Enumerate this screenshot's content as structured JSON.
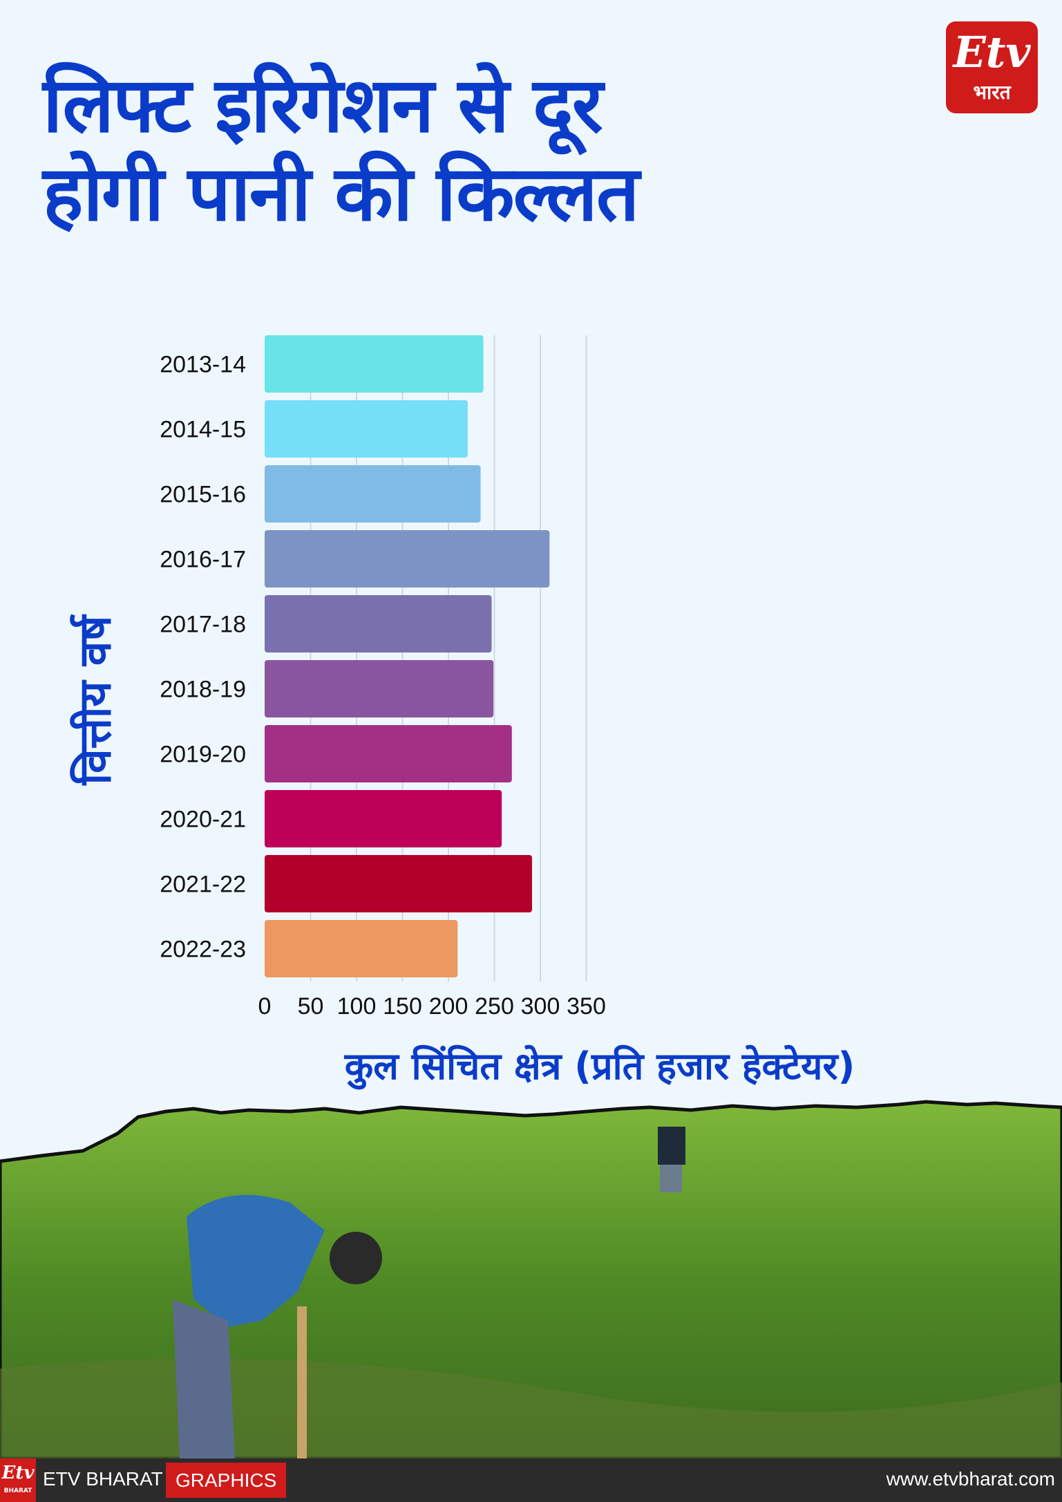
{
  "header": {
    "title_line1": "लिफ्ट इरिगेशन से दूर",
    "title_line2": "होगी पानी की किल्लत",
    "logo_mark": "Etv",
    "logo_sub": "भारत"
  },
  "chart_data": {
    "type": "bar",
    "orientation": "horizontal",
    "title": "",
    "xlabel": "कुल सिंचित क्षेत्र (प्रति हजार हेक्टेयर)",
    "ylabel": "वित्तीय वर्ष",
    "categories": [
      "2013-14",
      "2014-15",
      "2015-16",
      "2016-17",
      "2017-18",
      "2018-19",
      "2019-20",
      "2020-21",
      "2021-22",
      "2022-23"
    ],
    "values": [
      238,
      221,
      235,
      310,
      247,
      249,
      269,
      258,
      291,
      210
    ],
    "bar_colors": [
      "#68e3e8",
      "#76dff8",
      "#80bbe6",
      "#7c93c4",
      "#7a70ad",
      "#8a559f",
      "#a33085",
      "#bd0058",
      "#b3002a",
      "#ec9860"
    ],
    "xlim": [
      0,
      350
    ],
    "xticks": [
      0,
      50,
      100,
      150,
      200,
      250,
      300,
      350
    ],
    "grid": true
  },
  "footer": {
    "logo_mark": "Etv",
    "logo_sub": "BHARAT",
    "brand": "ETV BHARAT",
    "tag": "GRAPHICS",
    "url": "www.etvbharat.com"
  }
}
